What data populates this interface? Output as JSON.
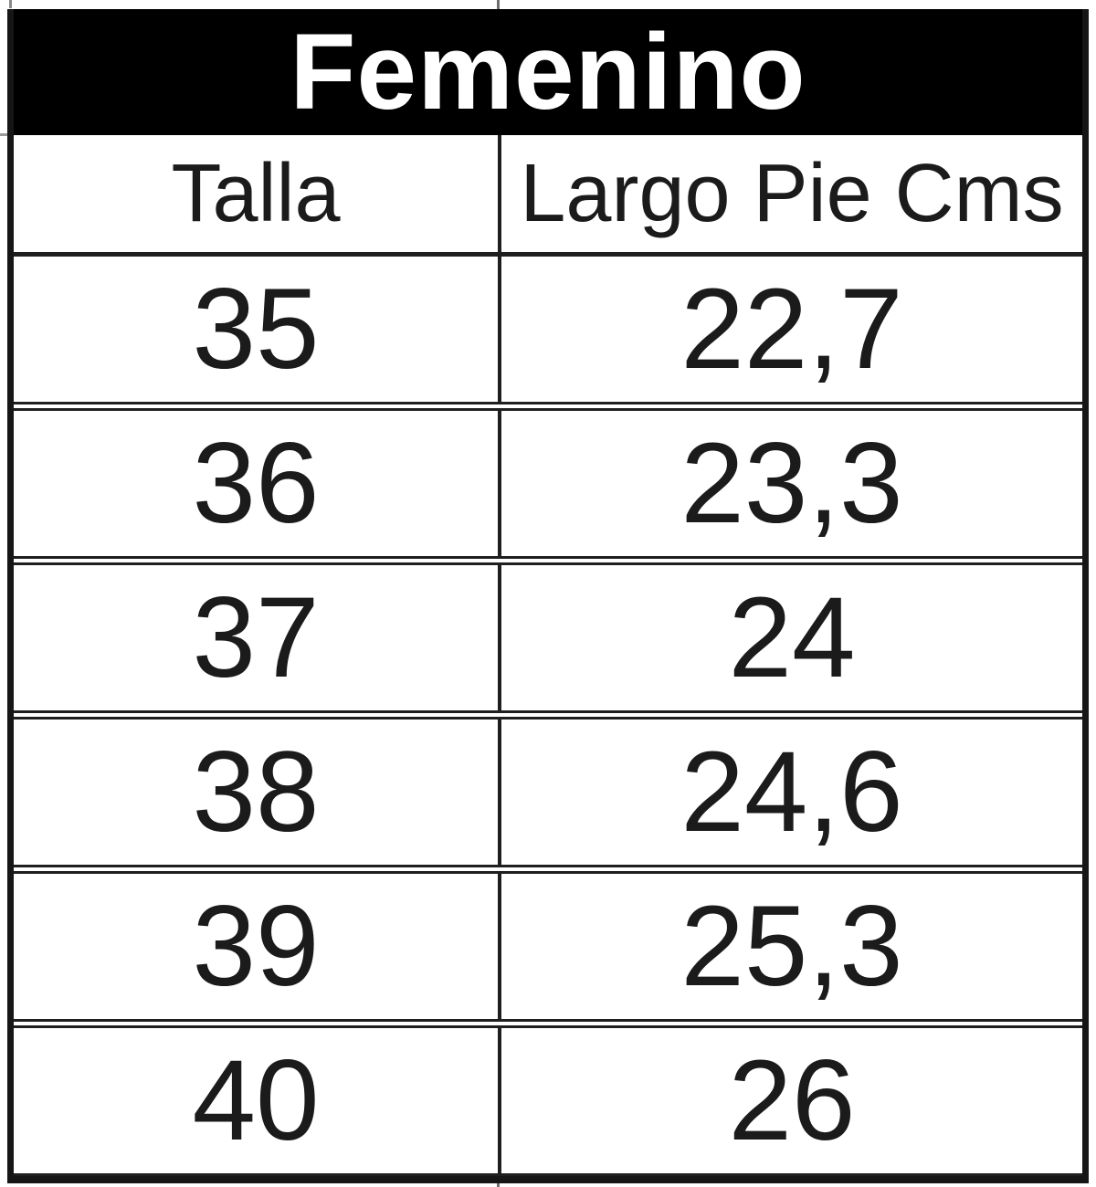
{
  "chart_data": {
    "type": "table",
    "title": "Femenino",
    "columns": [
      "Talla",
      "Largo Pie Cms"
    ],
    "rows": [
      [
        "35",
        "22,7"
      ],
      [
        "36",
        "23,3"
      ],
      [
        "37",
        "24"
      ],
      [
        "38",
        "24,6"
      ],
      [
        "39",
        "25,3"
      ],
      [
        "40",
        "26"
      ]
    ]
  },
  "colors": {
    "title_bg": "#000000",
    "title_text": "#ffffff",
    "cell_text": "#1b1b1b",
    "border": "#1f1f1f",
    "background": "#ffffff"
  }
}
